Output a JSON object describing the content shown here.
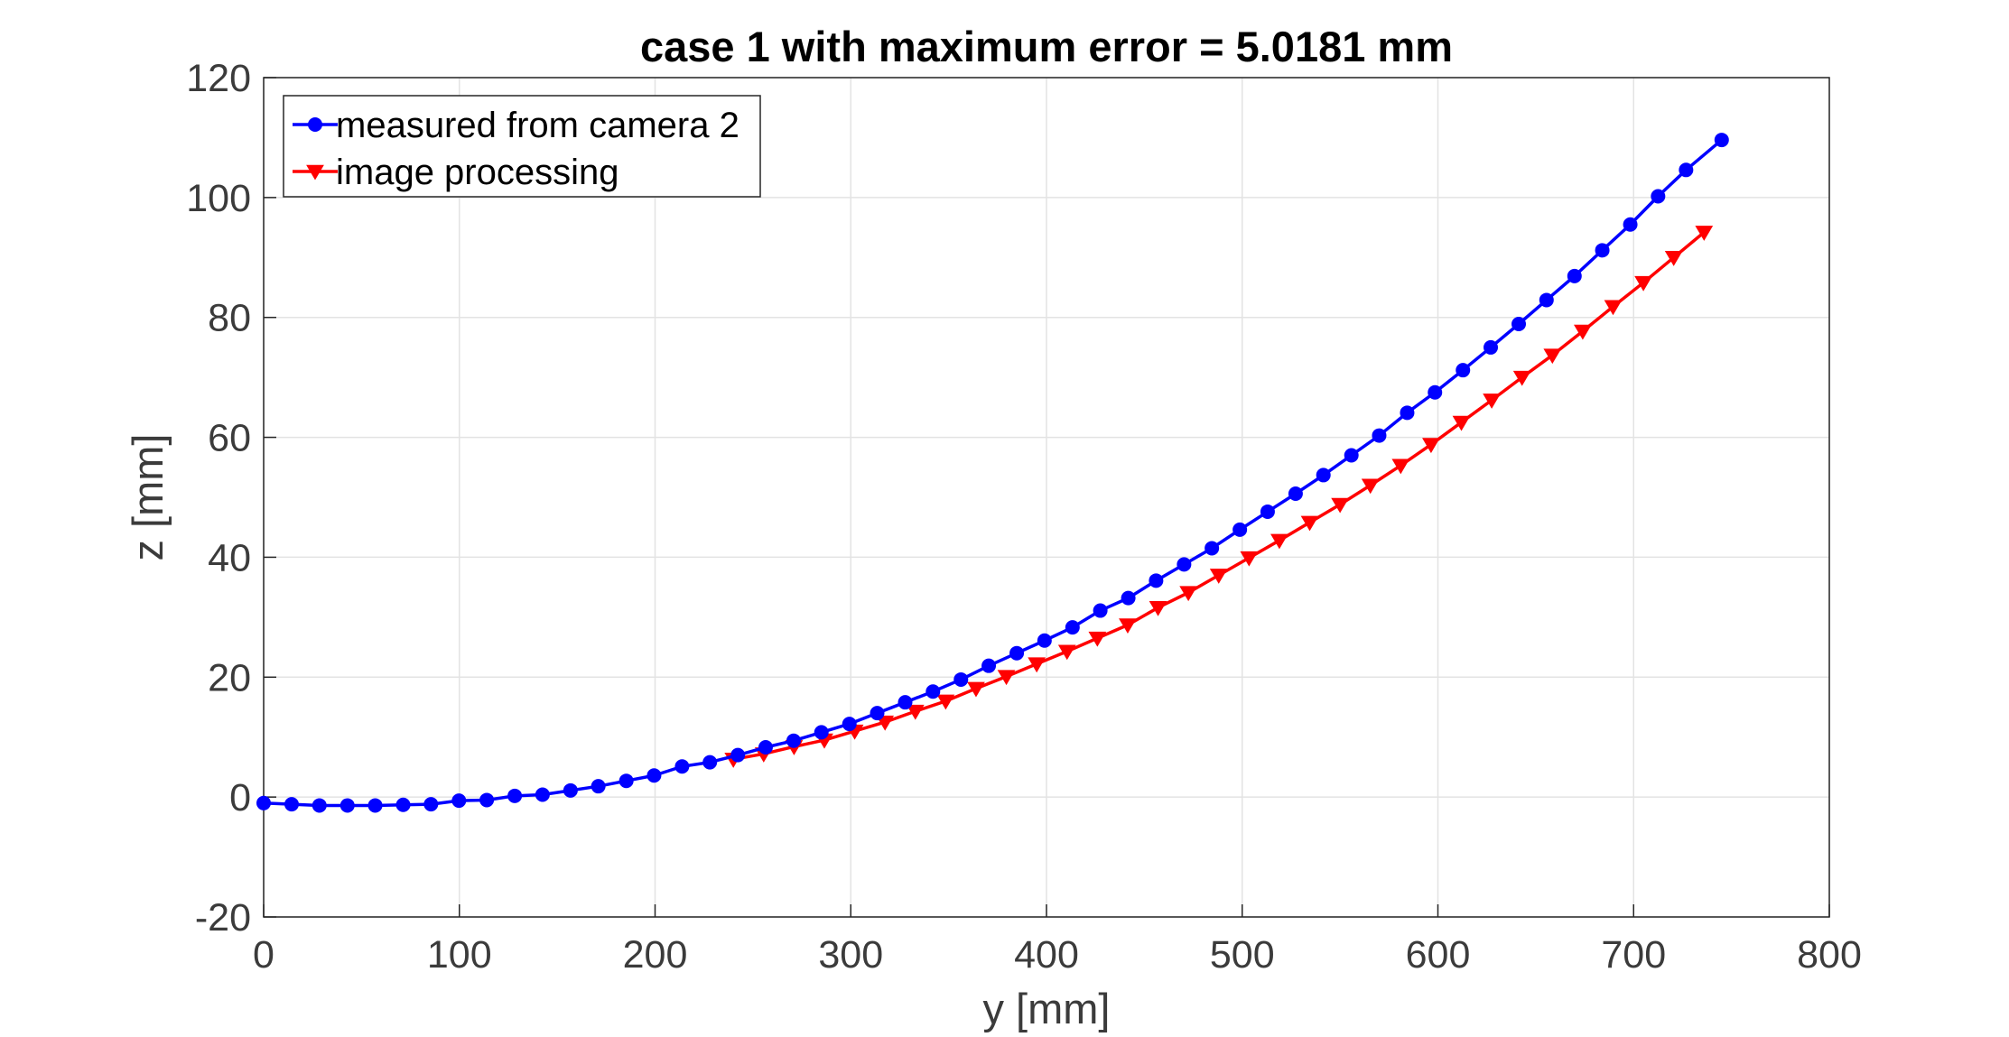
{
  "chart_data": {
    "type": "line",
    "title": "case 1 with maximum error = 5.0181 mm",
    "xlabel": "y [mm]",
    "ylabel": "z [mm]",
    "xlim": [
      0,
      800
    ],
    "ylim": [
      -20,
      120
    ],
    "xticks": [
      0,
      100,
      200,
      300,
      400,
      500,
      600,
      700,
      800
    ],
    "yticks": [
      -20,
      0,
      20,
      40,
      60,
      80,
      100,
      120
    ],
    "xtick_labels": [
      "0",
      "100",
      "200",
      "300",
      "400",
      "500",
      "600",
      "700",
      "800"
    ],
    "ytick_labels": [
      "-20",
      "0",
      "20",
      "40",
      "60",
      "80",
      "100",
      "120"
    ],
    "grid": true,
    "legend_position": "top-left",
    "series": [
      {
        "name": "measured from camera 2",
        "color": "#0000ff",
        "marker": "circle",
        "x": [
          0,
          14.3,
          28.5,
          42.8,
          57,
          71.3,
          85.5,
          99.8,
          114,
          128.3,
          142.5,
          156.8,
          171,
          185.3,
          199.5,
          213.8,
          228,
          242.3,
          256.5,
          270.8,
          285,
          299.3,
          313.5,
          327.8,
          342,
          356.3,
          370.5,
          384.8,
          399,
          413.3,
          427.5,
          441.8,
          456,
          470.3,
          484.5,
          498.8,
          513,
          527.3,
          541.5,
          555.8,
          570,
          584.3,
          598.5,
          612.8,
          627,
          641.3,
          655.5,
          669.8,
          684,
          698.3,
          712.5,
          726.8,
          745
        ],
        "y": [
          -1,
          -1.2,
          -1.4,
          -1.4,
          -1.4,
          -1.3,
          -1.2,
          -0.6,
          -0.5,
          0.2,
          0.4,
          1.1,
          1.8,
          2.7,
          3.6,
          5.1,
          5.8,
          7.0,
          8.3,
          9.4,
          10.8,
          12.2,
          14.0,
          15.8,
          17.6,
          19.6,
          21.9,
          24.0,
          26.1,
          28.3,
          31.1,
          33.2,
          36.1,
          38.8,
          41.5,
          44.6,
          47.6,
          50.6,
          53.7,
          57.0,
          60.3,
          64.1,
          67.5,
          71.2,
          75.0,
          78.9,
          82.9,
          86.9,
          91.2,
          95.5,
          100.2,
          104.6,
          109.6
        ]
      },
      {
        "name": "image processing",
        "color": "#ff0000",
        "marker": "triangle-down",
        "x": [
          240,
          255.5,
          271,
          286.5,
          302,
          317.5,
          333,
          348.5,
          364,
          379.5,
          395,
          410.5,
          426,
          441.5,
          457,
          472.5,
          488,
          503.5,
          519,
          534.5,
          550,
          565.5,
          581,
          596.5,
          612,
          627.5,
          643,
          658.5,
          674,
          689.5,
          705,
          720.5,
          736
        ],
        "y": [
          6.3,
          7.2,
          8.4,
          9.5,
          11.0,
          12.5,
          14.3,
          16.0,
          18.1,
          20.1,
          22.2,
          24.3,
          26.5,
          28.7,
          31.6,
          34.1,
          37.0,
          39.9,
          42.8,
          45.8,
          48.8,
          52.0,
          55.3,
          58.8,
          62.5,
          66.2,
          70.0,
          73.7,
          77.7,
          81.8,
          85.8,
          90.0,
          94.2
        ]
      }
    ]
  }
}
